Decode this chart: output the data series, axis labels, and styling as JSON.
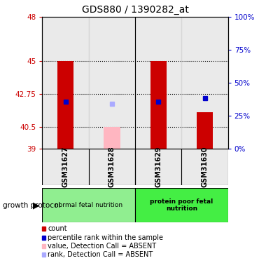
{
  "title": "GDS880 / 1390282_at",
  "samples": [
    "GSM31627",
    "GSM31628",
    "GSM31629",
    "GSM31630"
  ],
  "ylim": [
    39,
    48
  ],
  "yticks_left": [
    39,
    40.5,
    42.75,
    45,
    48
  ],
  "ytick_labels_left": [
    "39",
    "40.5",
    "42.75",
    "45",
    "48"
  ],
  "ytick_labels_right": [
    "0%",
    "25%",
    "50%",
    "75%",
    "100%"
  ],
  "hlines": [
    45,
    42.75,
    40.5
  ],
  "bar_values": [
    45,
    null,
    45,
    41.5
  ],
  "bar_bottom": 39,
  "bar_color": "#CC0000",
  "bar_width": 0.35,
  "blue_square_values": [
    42.2,
    null,
    42.2,
    42.45
  ],
  "pink_bar_value": 40.5,
  "pink_bar_index": 1,
  "light_blue_square_value": 42.05,
  "light_blue_square_index": 1,
  "blue_color": "#0000CC",
  "pink_color": "#FFB6C1",
  "light_blue_color": "#AAAAFF",
  "group1_label": "normal fetal nutrition",
  "group2_label": "protein poor fetal\nnutrition",
  "group1_color": "#90EE90",
  "group2_color": "#44EE44",
  "growth_protocol_label": "growth protocol",
  "legend_items": [
    {
      "label": "count",
      "color": "#CC0000"
    },
    {
      "label": "percentile rank within the sample",
      "color": "#0000CC"
    },
    {
      "label": "value, Detection Call = ABSENT",
      "color": "#FFB6C1"
    },
    {
      "label": "rank, Detection Call = ABSENT",
      "color": "#AAAAFF"
    }
  ],
  "sample_bg_color": "#CCCCCC",
  "left_tick_color": "#CC0000",
  "right_tick_color": "#0000CC",
  "title_fontsize": 10
}
